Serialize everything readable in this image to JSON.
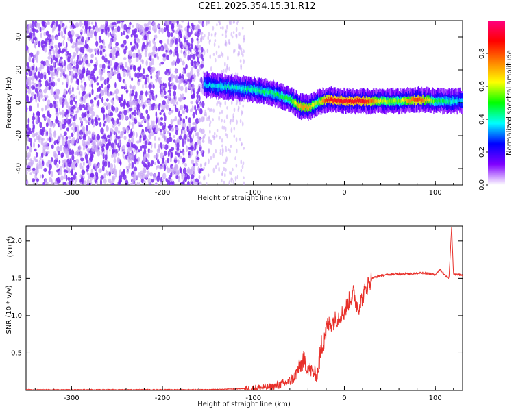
{
  "title": "C2E1.2025.354.15.31.R12",
  "colors": {
    "noise": "#7a2cf0",
    "noise_light": "#c9a8f5",
    "snr_line": "#e8302a",
    "axis": "#000000"
  },
  "chart_data": [
    {
      "type": "heatmap",
      "title": "C2E1.2025.354.15.31.R12",
      "xlabel": "Height of straight line (km)",
      "ylabel": "Frequency (Hz)",
      "xlim": [
        -350,
        130
      ],
      "ylim": [
        -50,
        50
      ],
      "x_ticks": [
        -300,
        -200,
        -100,
        0,
        100
      ],
      "x_tick_labels": [
        "-300",
        "-200",
        "-100",
        "0",
        "100"
      ],
      "y_ticks": [
        -40,
        -20,
        0,
        20,
        40
      ],
      "y_tick_labels": [
        "-40",
        "-20",
        "0",
        "20",
        "40"
      ],
      "noise_region_end": -155,
      "sparse_noise_end": -110,
      "signal_track": {
        "x": [
          -155,
          -140,
          -120,
          -100,
          -80,
          -60,
          -50,
          -40,
          -30,
          -20,
          0,
          20,
          40,
          60,
          80,
          100,
          130
        ],
        "freq": [
          11,
          10,
          9,
          8,
          6,
          2,
          -2,
          -3,
          0,
          2,
          1,
          1,
          1,
          1,
          2,
          1,
          1
        ],
        "amplitude": [
          0.35,
          0.38,
          0.4,
          0.42,
          0.45,
          0.5,
          0.7,
          0.72,
          0.55,
          0.85,
          0.9,
          0.9,
          0.6,
          0.55,
          0.85,
          0.5,
          0.35
        ]
      },
      "colorbar": {
        "label": "Normalized spectral amplitude",
        "range": [
          0,
          1
        ],
        "ticks": [
          0.0,
          0.2,
          0.4,
          0.6,
          0.8
        ],
        "tick_labels": [
          "0.0",
          "0.2",
          "0.4",
          "0.6",
          "0.8"
        ],
        "colormap": [
          "#ffffff",
          "#8000ff",
          "#0000ff",
          "#00ffff",
          "#00ff00",
          "#ffff00",
          "#ff8000",
          "#ff0000",
          "#ff0080"
        ]
      }
    },
    {
      "type": "line",
      "xlabel": "Height of straight line (km)",
      "ylabel": "SNR (10 * v/v)",
      "y_multiplier": "(x10",
      "y_multiplier_exp": "4",
      "y_multiplier_close": ")",
      "xlim": [
        -350,
        130
      ],
      "ylim": [
        0,
        2.2
      ],
      "x_ticks": [
        -300,
        -200,
        -100,
        0,
        100
      ],
      "x_tick_labels": [
        "-300",
        "-200",
        "-100",
        "0",
        "100"
      ],
      "y_ticks": [
        0.5,
        1.0,
        1.5,
        2.0
      ],
      "y_tick_labels": [
        "0.5",
        "1.0",
        "1.5",
        "2.0"
      ],
      "series": [
        {
          "name": "SNR",
          "x": [
            -350,
            -300,
            -250,
            -200,
            -150,
            -120,
            -100,
            -90,
            -80,
            -70,
            -60,
            -55,
            -50,
            -45,
            -40,
            -35,
            -30,
            -25,
            -20,
            -15,
            -10,
            -5,
            0,
            5,
            10,
            15,
            20,
            25,
            30,
            35,
            40,
            50,
            60,
            70,
            80,
            90,
            100,
            105,
            110,
            115,
            118,
            120,
            125,
            130
          ],
          "y": [
            0.01,
            0.01,
            0.01,
            0.01,
            0.01,
            0.02,
            0.03,
            0.04,
            0.05,
            0.08,
            0.12,
            0.18,
            0.3,
            0.4,
            0.3,
            0.25,
            0.2,
            0.6,
            0.85,
            0.9,
            0.95,
            1.0,
            1.05,
            1.2,
            1.3,
            1.1,
            1.25,
            1.4,
            1.5,
            1.52,
            1.54,
            1.55,
            1.56,
            1.56,
            1.57,
            1.57,
            1.55,
            1.62,
            1.55,
            1.5,
            2.2,
            1.55,
            1.55,
            1.54
          ]
        }
      ]
    }
  ]
}
